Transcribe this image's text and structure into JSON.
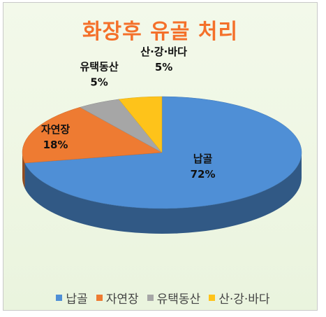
{
  "chart_data": {
    "type": "pie",
    "title": "화장후 유골 처리",
    "style": "3d",
    "legend_position": "bottom",
    "slices": [
      {
        "label": "납골",
        "value": 72,
        "value_label": "72%",
        "color": "#4f8fd6"
      },
      {
        "label": "자연장",
        "value": 18,
        "value_label": "18%",
        "color": "#ee7b32"
      },
      {
        "label": "유택동산",
        "value": 5,
        "value_label": "5%",
        "color": "#a6a6a6"
      },
      {
        "label": "산·강·바다",
        "value": 5,
        "value_label": "5%",
        "color": "#fec31a"
      }
    ]
  }
}
